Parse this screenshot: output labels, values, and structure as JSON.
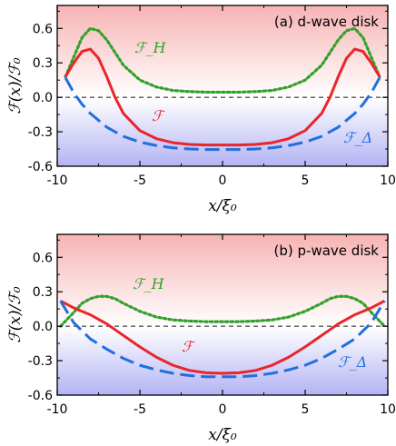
{
  "chart_data": [
    {
      "type": "line",
      "panel_label": "(a) d-wave disk",
      "xlabel": "x/ξ₀",
      "ylabel": "ℱ(x)/ℱ₀",
      "xlim": [
        -10,
        10
      ],
      "ylim": [
        -0.6,
        0.8
      ],
      "xticks": [
        "-10",
        "-5",
        "0",
        "5",
        "10"
      ],
      "yticks": [
        "-0.6",
        "-0.3",
        "0.0",
        "0.3",
        "0.6"
      ],
      "background": "gradient: red above 0, blue below 0",
      "reference_line": {
        "y": 0,
        "style": "dashed",
        "color": "#555555"
      },
      "series": [
        {
          "name": "ℱ_H",
          "color": "#33a02c",
          "style": "dotted",
          "x": [
            -9.5,
            -9.0,
            -8.5,
            -8.0,
            -7.5,
            -7.0,
            -6.5,
            -6.0,
            -5.0,
            -4.0,
            -3.0,
            -2.0,
            -1.0,
            0,
            1.0,
            2.0,
            3.0,
            4.0,
            5.0,
            6.0,
            6.5,
            7.0,
            7.5,
            8.0,
            8.5,
            9.0,
            9.5
          ],
          "y": [
            0.18,
            0.35,
            0.52,
            0.6,
            0.58,
            0.5,
            0.39,
            0.28,
            0.15,
            0.09,
            0.06,
            0.05,
            0.045,
            0.045,
            0.045,
            0.05,
            0.06,
            0.09,
            0.15,
            0.28,
            0.39,
            0.5,
            0.58,
            0.6,
            0.52,
            0.35,
            0.18
          ]
        },
        {
          "name": "ℱ",
          "color": "#e8262b",
          "style": "solid",
          "x": [
            -9.5,
            -9.0,
            -8.5,
            -8.0,
            -7.5,
            -7.0,
            -6.5,
            -6.0,
            -5.0,
            -4.0,
            -3.0,
            -2.0,
            -1.0,
            0,
            1.0,
            2.0,
            3.0,
            4.0,
            5.0,
            6.0,
            6.5,
            7.0,
            7.5,
            8.0,
            8.5,
            9.0,
            9.5
          ],
          "y": [
            0.18,
            0.3,
            0.4,
            0.42,
            0.34,
            0.18,
            0.0,
            -0.14,
            -0.29,
            -0.36,
            -0.395,
            -0.41,
            -0.415,
            -0.415,
            -0.415,
            -0.41,
            -0.395,
            -0.36,
            -0.29,
            -0.14,
            0.0,
            0.18,
            0.34,
            0.42,
            0.4,
            0.3,
            0.18
          ]
        },
        {
          "name": "ℱ_Δ",
          "color": "#1f6fe0",
          "style": "dashed",
          "x": [
            -9.5,
            -9.0,
            -8.5,
            -8.0,
            -7.0,
            -6.0,
            -5.0,
            -4.0,
            -3.0,
            -2.0,
            -1.0,
            0,
            1.0,
            2.0,
            3.0,
            4.0,
            5.0,
            6.0,
            7.0,
            8.0,
            8.5,
            9.0,
            9.5
          ],
          "y": [
            0.17,
            0.04,
            -0.06,
            -0.14,
            -0.26,
            -0.34,
            -0.39,
            -0.42,
            -0.44,
            -0.45,
            -0.455,
            -0.455,
            -0.455,
            -0.45,
            -0.44,
            -0.42,
            -0.39,
            -0.34,
            -0.26,
            -0.14,
            -0.06,
            0.04,
            0.17
          ]
        }
      ]
    },
    {
      "type": "line",
      "panel_label": "(b) p-wave disk",
      "xlabel": "x/ξ₀",
      "ylabel": "ℱ(x)/ℱ₀",
      "xlim": [
        -10,
        10
      ],
      "ylim": [
        -0.6,
        0.8
      ],
      "xticks": [
        "-10",
        "-5",
        "0",
        "5",
        "10"
      ],
      "yticks": [
        "-0.6",
        "-0.3",
        "0.0",
        "0.3",
        "0.6"
      ],
      "background": "gradient: red above 0, blue below 0",
      "reference_line": {
        "y": 0,
        "style": "dashed",
        "color": "#555555"
      },
      "series": [
        {
          "name": "ℱ_H",
          "color": "#33a02c",
          "style": "dotted",
          "x": [
            -9.8,
            -9.0,
            -8.5,
            -8.0,
            -7.5,
            -7.0,
            -6.5,
            -6.0,
            -5.0,
            -4.0,
            -3.0,
            -2.0,
            -1.0,
            0,
            1.0,
            2.0,
            3.0,
            4.0,
            5.0,
            6.0,
            6.5,
            7.0,
            7.5,
            8.0,
            8.5,
            9.0,
            9.8
          ],
          "y": [
            0.0,
            0.12,
            0.2,
            0.24,
            0.26,
            0.26,
            0.24,
            0.2,
            0.13,
            0.08,
            0.055,
            0.045,
            0.04,
            0.04,
            0.04,
            0.045,
            0.055,
            0.08,
            0.13,
            0.2,
            0.24,
            0.26,
            0.26,
            0.24,
            0.2,
            0.12,
            0.0
          ]
        },
        {
          "name": "ℱ",
          "color": "#e8262b",
          "style": "solid",
          "x": [
            -9.8,
            -9.0,
            -8.5,
            -8.0,
            -7.5,
            -7.0,
            -6.5,
            -6.0,
            -5.0,
            -4.0,
            -3.0,
            -2.0,
            -1.0,
            0,
            1.0,
            2.0,
            3.0,
            4.0,
            5.0,
            6.0,
            6.5,
            7.0,
            7.5,
            8.0,
            8.5,
            9.0,
            9.8
          ],
          "y": [
            0.22,
            0.16,
            0.13,
            0.1,
            0.06,
            0.02,
            -0.03,
            -0.08,
            -0.18,
            -0.27,
            -0.34,
            -0.385,
            -0.405,
            -0.41,
            -0.405,
            -0.385,
            -0.34,
            -0.27,
            -0.18,
            -0.08,
            -0.03,
            0.02,
            0.06,
            0.1,
            0.13,
            0.16,
            0.22
          ]
        },
        {
          "name": "ℱ_Δ",
          "color": "#1f6fe0",
          "style": "dashed",
          "x": [
            -9.8,
            -9.0,
            -8.0,
            -7.0,
            -6.0,
            -5.0,
            -4.0,
            -3.0,
            -2.0,
            -1.0,
            0,
            1.0,
            2.0,
            3.0,
            4.0,
            5.0,
            6.0,
            7.0,
            8.0,
            9.0,
            9.8
          ],
          "y": [
            0.22,
            0.03,
            -0.11,
            -0.2,
            -0.28,
            -0.34,
            -0.38,
            -0.41,
            -0.43,
            -0.44,
            -0.44,
            -0.44,
            -0.43,
            -0.41,
            -0.38,
            -0.34,
            -0.28,
            -0.2,
            -0.11,
            0.03,
            0.22
          ]
        }
      ]
    }
  ]
}
